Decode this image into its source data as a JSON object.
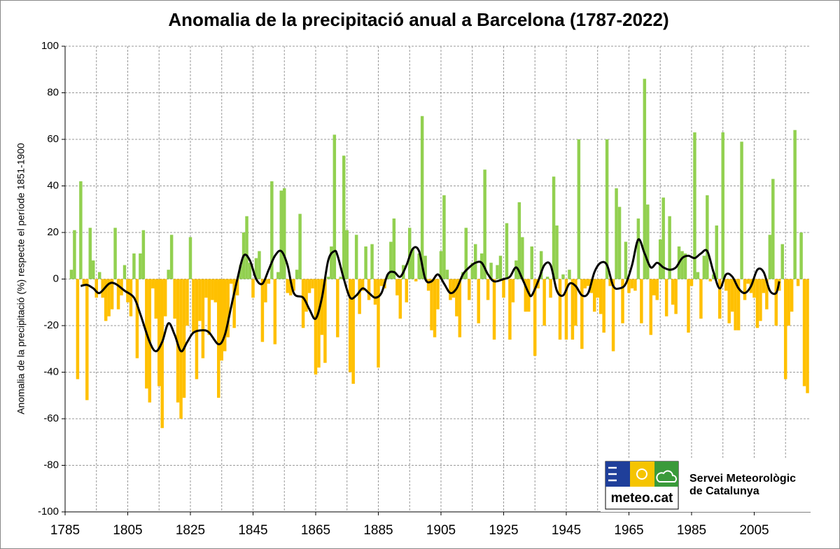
{
  "chart_data": {
    "type": "bar",
    "title": "Anomalia de la precipitació anual a Barcelona (1787-2022)",
    "y_label": "Anomalia de la precipitació (%) respecte el període 1851-1900",
    "xlim": [
      1785,
      2023
    ],
    "xticks": [
      1785,
      1805,
      1825,
      1845,
      1865,
      1885,
      1905,
      1925,
      1945,
      1965,
      1985,
      2005
    ],
    "xgrid": [
      1795,
      1805,
      1815,
      1825,
      1835,
      1845,
      1855,
      1865,
      1875,
      1885,
      1895,
      1905,
      1915,
      1925,
      1935,
      1945,
      1955,
      1965,
      1975,
      1985,
      1995,
      2005,
      2015
    ],
    "ylim": [
      -100,
      100
    ],
    "yticks": [
      -100,
      -80,
      -60,
      -40,
      -20,
      0,
      20,
      40,
      60,
      80,
      100
    ],
    "grid": true,
    "color_positive": "#92d050",
    "color_negative": "#ffc000",
    "x": [
      1787,
      1788,
      1789,
      1790,
      1791,
      1792,
      1793,
      1794,
      1795,
      1796,
      1797,
      1798,
      1799,
      1800,
      1801,
      1802,
      1803,
      1804,
      1805,
      1806,
      1807,
      1808,
      1809,
      1810,
      1811,
      1812,
      1813,
      1814,
      1815,
      1816,
      1817,
      1818,
      1819,
      1820,
      1821,
      1822,
      1823,
      1824,
      1825,
      1826,
      1827,
      1828,
      1829,
      1830,
      1831,
      1832,
      1833,
      1834,
      1835,
      1836,
      1837,
      1838,
      1839,
      1840,
      1841,
      1842,
      1843,
      1844,
      1845,
      1846,
      1847,
      1848,
      1849,
      1850,
      1851,
      1852,
      1853,
      1854,
      1855,
      1856,
      1857,
      1858,
      1859,
      1860,
      1861,
      1862,
      1863,
      1864,
      1865,
      1866,
      1867,
      1868,
      1869,
      1870,
      1871,
      1872,
      1873,
      1874,
      1875,
      1876,
      1877,
      1878,
      1879,
      1880,
      1881,
      1882,
      1883,
      1884,
      1885,
      1886,
      1887,
      1888,
      1889,
      1890,
      1891,
      1892,
      1893,
      1894,
      1895,
      1896,
      1897,
      1898,
      1899,
      1900,
      1901,
      1902,
      1903,
      1904,
      1905,
      1906,
      1907,
      1908,
      1909,
      1910,
      1911,
      1912,
      1913,
      1914,
      1915,
      1916,
      1917,
      1918,
      1919,
      1920,
      1921,
      1922,
      1923,
      1924,
      1925,
      1926,
      1927,
      1928,
      1929,
      1930,
      1931,
      1932,
      1933,
      1934,
      1935,
      1936,
      1937,
      1938,
      1939,
      1940,
      1941,
      1942,
      1943,
      1944,
      1945,
      1946,
      1947,
      1948,
      1949,
      1950,
      1951,
      1952,
      1953,
      1954,
      1955,
      1956,
      1957,
      1958,
      1959,
      1960,
      1961,
      1962,
      1963,
      1964,
      1965,
      1966,
      1967,
      1968,
      1969,
      1970,
      1971,
      1972,
      1973,
      1974,
      1975,
      1976,
      1977,
      1978,
      1979,
      1980,
      1981,
      1982,
      1983,
      1984,
      1985,
      1986,
      1987,
      1988,
      1989,
      1990,
      1991,
      1992,
      1993,
      1994,
      1995,
      1996,
      1997,
      1998,
      1999,
      2000,
      2001,
      2002,
      2003,
      2004,
      2005,
      2006,
      2007,
      2008,
      2009,
      2010,
      2011,
      2012,
      2013,
      2014,
      2015,
      2016,
      2017,
      2018,
      2019,
      2020,
      2021,
      2022
    ],
    "values": [
      4,
      21,
      -43,
      42,
      -3,
      -52,
      22,
      8,
      -8,
      3,
      -8,
      -18,
      -16,
      -13,
      22,
      -13,
      -7,
      6,
      -10,
      -16,
      11,
      -34,
      11,
      21,
      -47,
      -53,
      -4,
      -17,
      -46,
      -64,
      -16,
      4,
      19,
      -17,
      -53,
      -60,
      -51,
      -20,
      18,
      -23,
      -43,
      -18,
      -34,
      -8,
      -24,
      -9,
      -10,
      -51,
      -35,
      -31,
      -25,
      -2,
      -21,
      -7,
      6,
      20,
      27,
      7,
      -8,
      9,
      12,
      -27,
      -10,
      -2,
      42,
      -28,
      3,
      38,
      39,
      -6,
      -7,
      -5,
      4,
      28,
      -21,
      -14,
      -6,
      -4,
      -41,
      -38,
      -24,
      -36,
      1,
      14,
      62,
      -25,
      1,
      53,
      21,
      -40,
      -45,
      19,
      -15,
      -5,
      14,
      -9,
      15,
      -11,
      -38,
      -3,
      -4,
      2,
      16,
      26,
      -7,
      -17,
      6,
      -10,
      22,
      13,
      -1,
      11,
      70,
      10,
      -5,
      -22,
      -25,
      -13,
      12,
      36,
      4,
      -9,
      -8,
      -16,
      -25,
      3,
      22,
      -9,
      7,
      15,
      -19,
      11,
      47,
      -9,
      7,
      -26,
      6,
      10,
      -8,
      24,
      -26,
      -10,
      8,
      33,
      18,
      -14,
      -14,
      14,
      -33,
      -4,
      12,
      -20,
      1,
      -8,
      44,
      23,
      -26,
      2,
      -26,
      4,
      -26,
      -20,
      60,
      -30,
      -4,
      -3,
      -6,
      -14,
      -8,
      -15,
      -23,
      60,
      -3,
      -31,
      39,
      31,
      -19,
      16,
      -6,
      -4,
      -5,
      26,
      -19,
      86,
      32,
      -24,
      -7,
      -9,
      17,
      35,
      -16,
      27,
      -11,
      -15,
      14,
      12,
      11,
      -23,
      -3,
      63,
      3,
      -17,
      10,
      36,
      -1,
      2,
      23,
      -17,
      63,
      -5,
      -19,
      -14,
      -22,
      -22,
      59,
      -9,
      -2,
      -6,
      -8,
      -21,
      -18,
      -6,
      -13,
      19,
      43,
      -20,
      -5,
      15,
      -43,
      -20,
      -14,
      64,
      -3,
      20,
      -46,
      -49
    ],
    "trend": {
      "color": "#000000",
      "x": [
        1790,
        1792,
        1794,
        1796,
        1799,
        1801,
        1804,
        1807,
        1809,
        1812,
        1814,
        1816,
        1818,
        1820,
        1822,
        1824,
        1826,
        1829,
        1831,
        1834,
        1836,
        1838,
        1840,
        1842,
        1844,
        1846,
        1848,
        1850,
        1852,
        1854,
        1856,
        1858,
        1861,
        1863,
        1865,
        1867,
        1869,
        1871,
        1872,
        1874,
        1876,
        1878,
        1880,
        1882,
        1884,
        1886,
        1888,
        1890,
        1892,
        1894,
        1896,
        1898,
        1900,
        1902,
        1904,
        1906,
        1908,
        1910,
        1912,
        1914,
        1916,
        1918,
        1920,
        1922,
        1925,
        1927,
        1929,
        1931,
        1933,
        1934,
        1936,
        1938,
        1940,
        1942,
        1944,
        1946,
        1948,
        1950,
        1952,
        1954,
        1956,
        1958,
        1960,
        1962,
        1964,
        1966,
        1968,
        1970,
        1972,
        1974,
        1976,
        1978,
        1980,
        1982,
        1984,
        1986,
        1988,
        1990,
        1992,
        1994,
        1996,
        1998,
        2000,
        2002,
        2004,
        2006,
        2008,
        2010,
        2012,
        2013
      ],
      "values": [
        -3,
        -2.5,
        -4,
        -6,
        -2,
        -2,
        -5,
        -8,
        -15,
        -27,
        -31,
        -27,
        -19,
        -24,
        -31,
        -27,
        -23,
        -22,
        -23,
        -28,
        -24,
        -12,
        0,
        10,
        8,
        0,
        -2,
        4,
        10,
        12,
        6,
        -6,
        -8,
        -13,
        -17,
        -8,
        8,
        12,
        10,
        0,
        -8,
        -7,
        -4,
        -6,
        -8,
        -6,
        2,
        3,
        1,
        6,
        13,
        12,
        0,
        -1,
        2,
        -2,
        -6,
        -4,
        2,
        5,
        7,
        7,
        2,
        -1,
        0,
        1,
        5,
        0,
        -6,
        -7,
        -1,
        6,
        6,
        -5,
        -7,
        -2,
        -3,
        -7,
        -6,
        3,
        7,
        6,
        -3,
        -4,
        -2,
        6,
        17,
        11,
        5,
        7,
        5,
        4,
        5,
        9,
        10,
        9,
        11,
        12,
        3,
        -4,
        2,
        1,
        -4,
        -6,
        -3,
        4,
        3,
        -5,
        -6,
        -1
      ]
    }
  },
  "logo": {
    "text": "meteo.cat",
    "org": [
      "Servei Meteorològic",
      "de Catalunya"
    ]
  }
}
